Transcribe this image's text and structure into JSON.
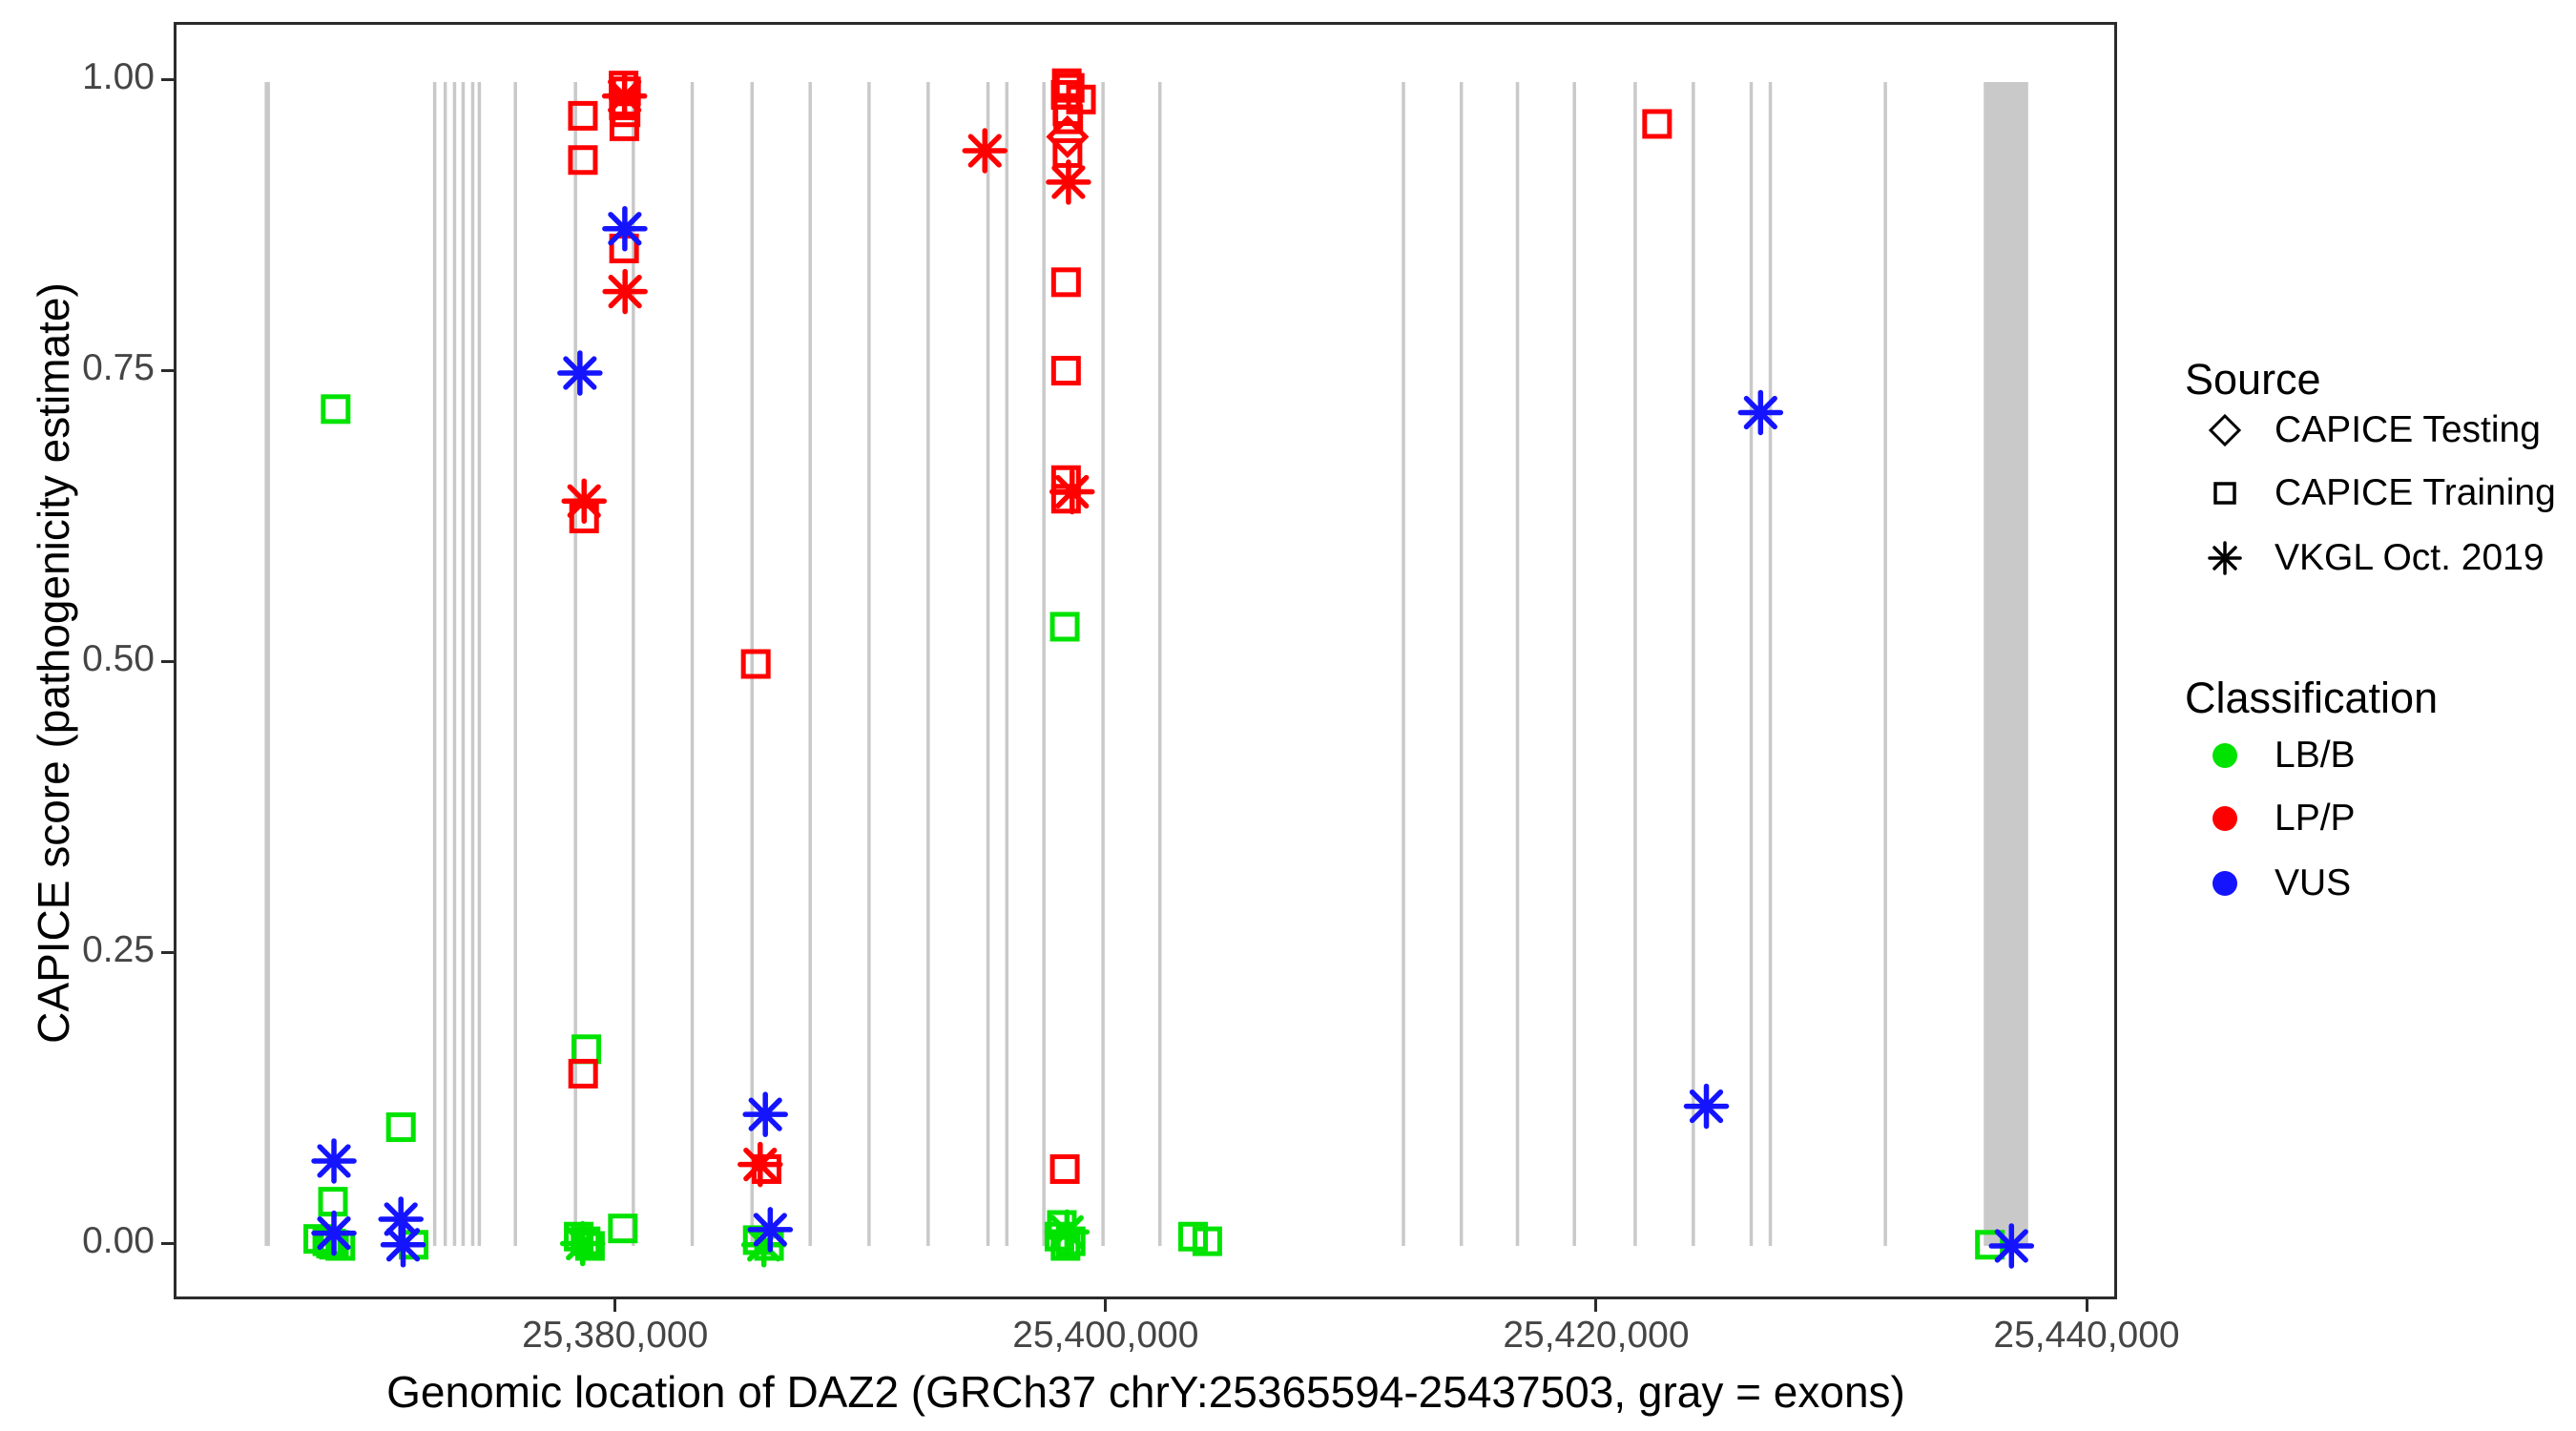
{
  "figure": {
    "x_axis_title": "Genomic location of DAZ2 (GRCh37 chrY:25365594-25437503, gray = exons)",
    "y_axis_title": "CAPICE score (pathogenicity estimate)"
  },
  "legend": {
    "source": {
      "title": "Source",
      "items": [
        {
          "label": "CAPICE Testing",
          "shape": "diamond"
        },
        {
          "label": "CAPICE Training",
          "shape": "square"
        },
        {
          "label": "VKGL Oct. 2019",
          "shape": "asterisk"
        }
      ]
    },
    "classification": {
      "title": "Classification",
      "items": [
        {
          "label": "LB/B",
          "color": "#00E300"
        },
        {
          "label": "LP/P",
          "color": "#FF0000"
        },
        {
          "label": "VUS",
          "color": "#1414FF"
        }
      ]
    }
  },
  "chart_data": {
    "type": "scatter",
    "title": "",
    "xlabel": "Genomic location of DAZ2 (GRCh37 chrY:25365594-25437503, gray = exons)",
    "ylabel": "CAPICE score (pathogenicity estimate)",
    "xlim": [
      25362000,
      25441010
    ],
    "ylim": [
      0,
      1
    ],
    "grid": false,
    "legend_position": "right",
    "x_ticks": [
      {
        "value": 25380000,
        "label": "25,380,000"
      },
      {
        "value": 25400000,
        "label": "25,400,000"
      },
      {
        "value": 25420000,
        "label": "25,420,000"
      },
      {
        "value": 25440000,
        "label": "25,440,000"
      }
    ],
    "y_ticks": [
      {
        "value": 0.0,
        "label": "0.00"
      },
      {
        "value": 0.25,
        "label": "0.25"
      },
      {
        "value": 0.5,
        "label": "0.50"
      },
      {
        "value": 0.75,
        "label": "0.75"
      },
      {
        "value": 1.0,
        "label": "1.00"
      }
    ],
    "colors": {
      "LB/B": "#00E300",
      "LP/P": "#FF0000",
      "VUS": "#1414FF",
      "exon": "#C9C9C9"
    },
    "shape_meaning": {
      "square": "CAPICE Training",
      "diamond": "CAPICE Testing",
      "asterisk": "VKGL Oct. 2019"
    },
    "exons": [
      [
        25365594,
        25365810
      ],
      [
        25372460,
        25372580
      ],
      [
        25372890,
        25373010
      ],
      [
        25373270,
        25373390
      ],
      [
        25373620,
        25373740
      ],
      [
        25374010,
        25374130
      ],
      [
        25374280,
        25374400
      ],
      [
        25375750,
        25375870
      ],
      [
        25378200,
        25378320
      ],
      [
        25380560,
        25380680
      ],
      [
        25382960,
        25383080
      ],
      [
        25385400,
        25385520
      ],
      [
        25387770,
        25387890
      ],
      [
        25390170,
        25390290
      ],
      [
        25392580,
        25392700
      ],
      [
        25395020,
        25395140
      ],
      [
        25395790,
        25395910
      ],
      [
        25397300,
        25397420
      ],
      [
        25399710,
        25399830
      ],
      [
        25402030,
        25402150
      ],
      [
        25411960,
        25412080
      ],
      [
        25414320,
        25414440
      ],
      [
        25416610,
        25416730
      ],
      [
        25418930,
        25419050
      ],
      [
        25421410,
        25421530
      ],
      [
        25423780,
        25423900
      ],
      [
        25426140,
        25426260
      ],
      [
        25426920,
        25427040
      ],
      [
        25431610,
        25431730
      ],
      [
        25435690,
        25437503
      ]
    ],
    "points": [
      {
        "pos": 25368490,
        "score": 0.719,
        "shape": "square",
        "cls": "LB/B"
      },
      {
        "pos": 25368380,
        "score": 0.038,
        "shape": "square",
        "cls": "LB/B"
      },
      {
        "pos": 25367780,
        "score": 0.006,
        "shape": "square",
        "cls": "LB/B"
      },
      {
        "pos": 25368150,
        "score": 0.004,
        "shape": "square",
        "cls": "LB/B"
      },
      {
        "pos": 25368420,
        "score": 0.001,
        "shape": "square",
        "cls": "LB/B"
      },
      {
        "pos": 25368680,
        "score": 0.0,
        "shape": "square",
        "cls": "LB/B"
      },
      {
        "pos": 25368300,
        "score": 0.002,
        "shape": "square",
        "cls": "LB/B"
      },
      {
        "pos": 25371150,
        "score": 0.102,
        "shape": "square",
        "cls": "LB/B"
      },
      {
        "pos": 25371670,
        "score": 0.001,
        "shape": "square",
        "cls": "LB/B"
      },
      {
        "pos": 25378710,
        "score": 0.169,
        "shape": "square",
        "cls": "LB/B"
      },
      {
        "pos": 25380200,
        "score": 0.015,
        "shape": "square",
        "cls": "LB/B"
      },
      {
        "pos": 25378400,
        "score": 0.008,
        "shape": "square",
        "cls": "LB/B"
      },
      {
        "pos": 25378560,
        "score": 0.002,
        "shape": "asterisk",
        "cls": "LB/B"
      },
      {
        "pos": 25378680,
        "score": 0.004,
        "shape": "square",
        "cls": "LB/B"
      },
      {
        "pos": 25378860,
        "score": 0.0,
        "shape": "square",
        "cls": "LB/B"
      },
      {
        "pos": 25385700,
        "score": 0.005,
        "shape": "square",
        "cls": "LB/B"
      },
      {
        "pos": 25385950,
        "score": 0.001,
        "shape": "asterisk",
        "cls": "LB/B"
      },
      {
        "pos": 25386160,
        "score": 0.0,
        "shape": "square",
        "cls": "LB/B"
      },
      {
        "pos": 25398220,
        "score": 0.532,
        "shape": "square",
        "cls": "LB/B"
      },
      {
        "pos": 25398100,
        "score": 0.018,
        "shape": "square",
        "cls": "LB/B"
      },
      {
        "pos": 25398310,
        "score": 0.012,
        "shape": "asterisk",
        "cls": "LB/B"
      },
      {
        "pos": 25398000,
        "score": 0.008,
        "shape": "square",
        "cls": "LB/B"
      },
      {
        "pos": 25398460,
        "score": 0.004,
        "shape": "square",
        "cls": "LB/B"
      },
      {
        "pos": 25398250,
        "score": 0.0,
        "shape": "square",
        "cls": "LB/B"
      },
      {
        "pos": 25403450,
        "score": 0.008,
        "shape": "square",
        "cls": "LB/B"
      },
      {
        "pos": 25404030,
        "score": 0.004,
        "shape": "square",
        "cls": "LB/B"
      },
      {
        "pos": 25435940,
        "score": 0.001,
        "shape": "square",
        "cls": "LB/B"
      },
      {
        "pos": 25378570,
        "score": 0.971,
        "shape": "square",
        "cls": "LP/P"
      },
      {
        "pos": 25378570,
        "score": 0.933,
        "shape": "square",
        "cls": "LP/P"
      },
      {
        "pos": 25380230,
        "score": 0.997,
        "shape": "square",
        "cls": "LP/P"
      },
      {
        "pos": 25380330,
        "score": 0.992,
        "shape": "square",
        "cls": "LP/P"
      },
      {
        "pos": 25380270,
        "score": 0.988,
        "shape": "asterisk",
        "cls": "LP/P"
      },
      {
        "pos": 25380240,
        "score": 0.98,
        "shape": "square",
        "cls": "LP/P"
      },
      {
        "pos": 25380310,
        "score": 0.974,
        "shape": "square",
        "cls": "LP/P"
      },
      {
        "pos": 25380260,
        "score": 0.962,
        "shape": "square",
        "cls": "LP/P"
      },
      {
        "pos": 25380250,
        "score": 0.857,
        "shape": "square",
        "cls": "LP/P"
      },
      {
        "pos": 25380290,
        "score": 0.82,
        "shape": "asterisk",
        "cls": "LP/P"
      },
      {
        "pos": 25378620,
        "score": 0.64,
        "shape": "asterisk",
        "cls": "LP/P"
      },
      {
        "pos": 25378620,
        "score": 0.625,
        "shape": "square",
        "cls": "LP/P"
      },
      {
        "pos": 25378580,
        "score": 0.148,
        "shape": "square",
        "cls": "LP/P"
      },
      {
        "pos": 25385620,
        "score": 0.5,
        "shape": "square",
        "cls": "LP/P"
      },
      {
        "pos": 25385800,
        "score": 0.07,
        "shape": "asterisk",
        "cls": "LP/P"
      },
      {
        "pos": 25386060,
        "score": 0.066,
        "shape": "square",
        "cls": "LP/P"
      },
      {
        "pos": 25394960,
        "score": 0.941,
        "shape": "asterisk",
        "cls": "LP/P"
      },
      {
        "pos": 25398300,
        "score": 0.999,
        "shape": "square",
        "cls": "LP/P"
      },
      {
        "pos": 25398420,
        "score": 0.995,
        "shape": "square",
        "cls": "LP/P"
      },
      {
        "pos": 25398260,
        "score": 0.989,
        "shape": "square",
        "cls": "LP/P"
      },
      {
        "pos": 25398880,
        "score": 0.985,
        "shape": "square",
        "cls": "LP/P"
      },
      {
        "pos": 25398330,
        "score": 0.975,
        "shape": "square",
        "cls": "LP/P"
      },
      {
        "pos": 25398360,
        "score": 0.968,
        "shape": "square",
        "cls": "LP/P"
      },
      {
        "pos": 25398330,
        "score": 0.953,
        "shape": "diamond",
        "cls": "LP/P"
      },
      {
        "pos": 25398330,
        "score": 0.939,
        "shape": "square",
        "cls": "LP/P"
      },
      {
        "pos": 25398370,
        "score": 0.914,
        "shape": "asterisk",
        "cls": "LP/P"
      },
      {
        "pos": 25398270,
        "score": 0.828,
        "shape": "square",
        "cls": "LP/P"
      },
      {
        "pos": 25398270,
        "score": 0.752,
        "shape": "square",
        "cls": "LP/P"
      },
      {
        "pos": 25398270,
        "score": 0.658,
        "shape": "square",
        "cls": "LP/P"
      },
      {
        "pos": 25398270,
        "score": 0.642,
        "shape": "square",
        "cls": "LP/P"
      },
      {
        "pos": 25398520,
        "score": 0.648,
        "shape": "asterisk",
        "cls": "LP/P"
      },
      {
        "pos": 25398220,
        "score": 0.066,
        "shape": "square",
        "cls": "LP/P"
      },
      {
        "pos": 25422370,
        "score": 0.964,
        "shape": "square",
        "cls": "LP/P"
      },
      {
        "pos": 25368420,
        "score": 0.073,
        "shape": "asterisk",
        "cls": "VUS"
      },
      {
        "pos": 25368420,
        "score": 0.011,
        "shape": "asterisk",
        "cls": "VUS"
      },
      {
        "pos": 25371150,
        "score": 0.023,
        "shape": "asterisk",
        "cls": "VUS"
      },
      {
        "pos": 25371240,
        "score": 0.001,
        "shape": "asterisk",
        "cls": "VUS"
      },
      {
        "pos": 25380280,
        "score": 0.874,
        "shape": "asterisk",
        "cls": "VUS"
      },
      {
        "pos": 25378450,
        "score": 0.75,
        "shape": "asterisk",
        "cls": "VUS"
      },
      {
        "pos": 25386010,
        "score": 0.113,
        "shape": "asterisk",
        "cls": "VUS"
      },
      {
        "pos": 25386210,
        "score": 0.014,
        "shape": "asterisk",
        "cls": "VUS"
      },
      {
        "pos": 25426590,
        "score": 0.716,
        "shape": "asterisk",
        "cls": "VUS"
      },
      {
        "pos": 25424380,
        "score": 0.12,
        "shape": "asterisk",
        "cls": "VUS"
      },
      {
        "pos": 25436820,
        "score": 0.0,
        "shape": "asterisk",
        "cls": "VUS"
      }
    ]
  }
}
